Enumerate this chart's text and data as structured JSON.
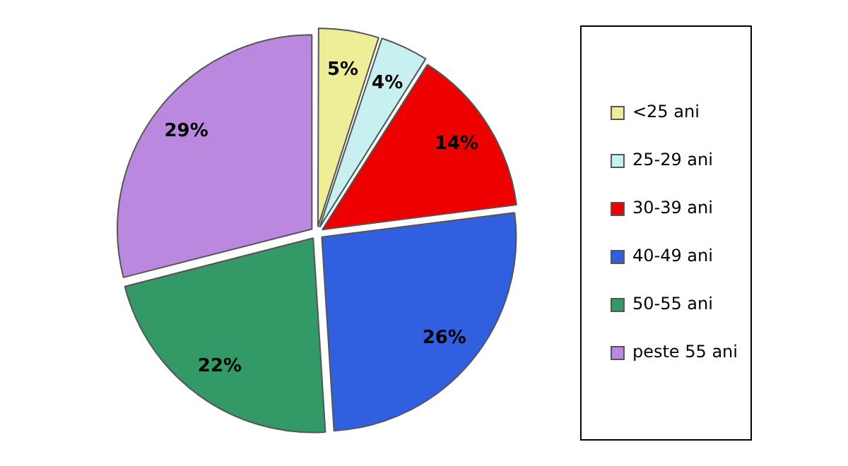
{
  "chart_data": {
    "type": "pie",
    "categories": [
      "<25 ani",
      "25-29 ani",
      "30-39 ani",
      "40-49 ani",
      "50-55 ani",
      "peste 55 ani"
    ],
    "values": [
      5,
      4,
      14,
      26,
      22,
      29
    ],
    "colors": [
      "#eeee99",
      "#c8f0f0",
      "#ee0000",
      "#3060e0",
      "#339966",
      "#bb88e0"
    ],
    "value_labels": [
      "5%",
      "4%",
      "14%",
      "26%",
      "22%",
      "29%"
    ],
    "legend": "right"
  }
}
